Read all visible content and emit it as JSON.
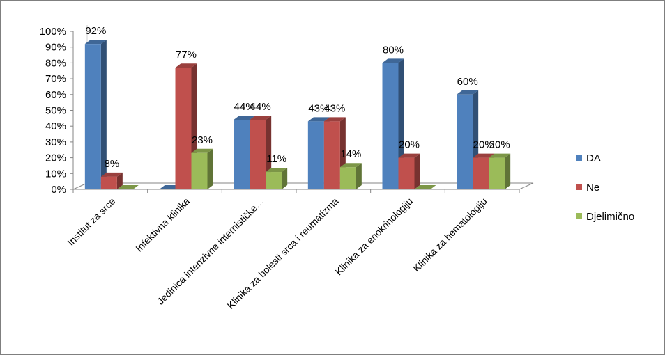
{
  "chart_data": {
    "type": "bar",
    "title": "",
    "xlabel": "",
    "ylabel": "",
    "ylim": [
      0,
      100
    ],
    "y_ticks": [
      "0%",
      "10%",
      "20%",
      "30%",
      "40%",
      "50%",
      "60%",
      "70%",
      "80%",
      "90%",
      "100%"
    ],
    "categories": [
      "Institut za srce",
      "Infektivna klinika",
      "Jedinica intenzivne internističke…",
      "Klinika za bolesti srca i reumatizma",
      "Klinika za enokrinologiju",
      "Klinika za hematologiju"
    ],
    "series": [
      {
        "name": "DA",
        "color": "#4F81BD",
        "values": [
          92,
          0,
          44,
          43,
          80,
          60
        ],
        "labels": [
          "92%",
          "",
          "44%",
          "43%",
          "80%",
          "60%"
        ]
      },
      {
        "name": "Ne",
        "color": "#C0504D",
        "values": [
          8,
          77,
          44,
          43,
          20,
          20
        ],
        "labels": [
          "8%",
          "77%",
          "44%",
          "43%",
          "20%",
          "20%"
        ]
      },
      {
        "name": "Djelimično",
        "color": "#9BBB59",
        "values": [
          0,
          23,
          11,
          14,
          0,
          20
        ],
        "labels": [
          "",
          "23%",
          "11%",
          "14%",
          "",
          "20%"
        ]
      }
    ],
    "style": "3d-clustered-column",
    "grid": false,
    "legend_position": "right"
  }
}
